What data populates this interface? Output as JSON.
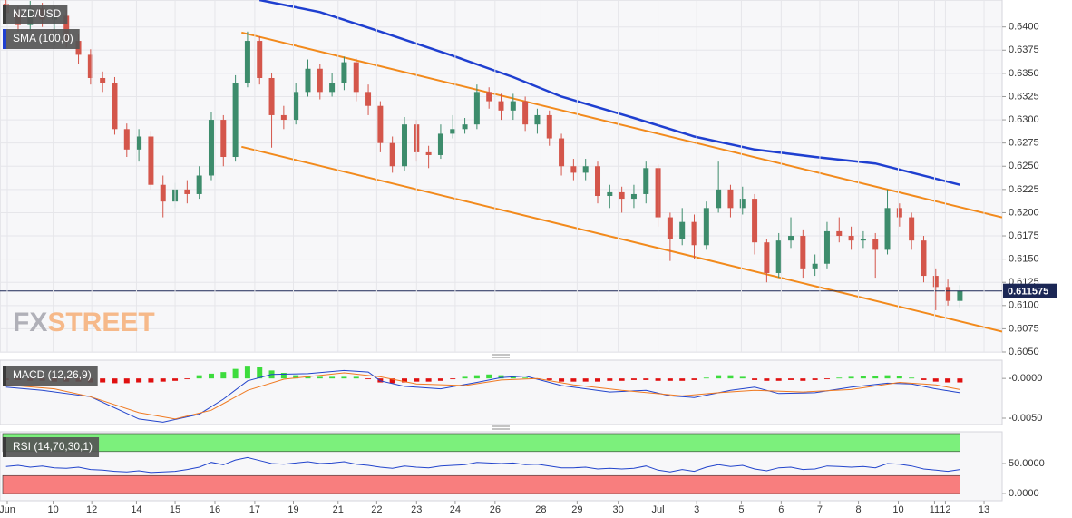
{
  "chart_data": [
    {
      "type": "candlestick",
      "title": "NZD/USD",
      "grid": true,
      "xlim": [
        -0.5,
        82.5
      ],
      "ylim": [
        0.605,
        0.6429
      ],
      "yticks": [
        {
          "value": 0.605,
          "label": "0.6050"
        },
        {
          "value": 0.6075,
          "label": "0.6075"
        },
        {
          "value": 0.61,
          "label": "0.6100"
        },
        {
          "value": 0.6125,
          "label": "0.6125"
        },
        {
          "value": 0.615,
          "label": "0.6150"
        },
        {
          "value": 0.6175,
          "label": "0.6175"
        },
        {
          "value": 0.62,
          "label": "0.6200"
        },
        {
          "value": 0.6225,
          "label": "0.6225"
        },
        {
          "value": 0.625,
          "label": "0.6250"
        },
        {
          "value": 0.6275,
          "label": "0.6275"
        },
        {
          "value": 0.63,
          "label": "0.6300"
        },
        {
          "value": 0.6325,
          "label": "0.6325"
        },
        {
          "value": 0.635,
          "label": "0.6350"
        },
        {
          "value": 0.6375,
          "label": "0.6375"
        },
        {
          "value": 0.64,
          "label": "0.6400"
        }
      ],
      "up_color": "#3d8c6c",
      "down_color": "#d4564b",
      "open": [
        0.6425,
        0.6415,
        0.6402,
        0.642,
        0.6408,
        0.6412,
        0.6385,
        0.637,
        0.6345,
        0.634,
        0.629,
        0.6268,
        0.6282,
        0.623,
        0.6212,
        0.6225,
        0.622,
        0.624,
        0.63,
        0.626,
        0.634,
        0.6385,
        0.6345,
        0.6305,
        0.63,
        0.633,
        0.6355,
        0.633,
        0.634,
        0.6362,
        0.633,
        0.6315,
        0.6275,
        0.625,
        0.6295,
        0.6265,
        0.6262,
        0.6285,
        0.629,
        0.6295,
        0.633,
        0.632,
        0.631,
        0.632,
        0.6295,
        0.6305,
        0.628,
        0.625,
        0.6243,
        0.625,
        0.6218,
        0.6222,
        0.6215,
        0.622,
        0.6248,
        0.6195,
        0.6172,
        0.619,
        0.6165,
        0.6205,
        0.6225,
        0.6205,
        0.6215,
        0.6168,
        0.6135,
        0.617,
        0.6175,
        0.614,
        0.6145,
        0.618,
        0.6175,
        0.617,
        0.6172,
        0.616,
        0.6205,
        0.6195,
        0.617,
        0.6132,
        0.612,
        0.6105
      ],
      "high": [
        0.6432,
        0.6422,
        0.6428,
        0.6426,
        0.6422,
        0.6418,
        0.6392,
        0.6376,
        0.6352,
        0.6346,
        0.6296,
        0.629,
        0.6288,
        0.624,
        0.6232,
        0.6235,
        0.625,
        0.6308,
        0.6305,
        0.6348,
        0.6395,
        0.639,
        0.635,
        0.6315,
        0.634,
        0.6365,
        0.636,
        0.635,
        0.6368,
        0.6366,
        0.6338,
        0.632,
        0.6282,
        0.6303,
        0.63,
        0.6272,
        0.6295,
        0.6305,
        0.6302,
        0.6338,
        0.6335,
        0.6328,
        0.6328,
        0.6325,
        0.6312,
        0.631,
        0.6285,
        0.6258,
        0.6258,
        0.6255,
        0.623,
        0.6228,
        0.623,
        0.6255,
        0.6252,
        0.62,
        0.6205,
        0.6198,
        0.6212,
        0.6255,
        0.623,
        0.6228,
        0.622,
        0.6172,
        0.6178,
        0.6195,
        0.6182,
        0.6155,
        0.619,
        0.6195,
        0.6185,
        0.618,
        0.6178,
        0.6225,
        0.621,
        0.62,
        0.6175,
        0.614,
        0.6128,
        0.6122
      ],
      "low": [
        0.6408,
        0.6395,
        0.6396,
        0.64,
        0.638,
        0.6378,
        0.636,
        0.6338,
        0.633,
        0.6284,
        0.626,
        0.6255,
        0.6225,
        0.6195,
        0.6205,
        0.621,
        0.6215,
        0.6235,
        0.625,
        0.6255,
        0.6335,
        0.6338,
        0.627,
        0.629,
        0.6295,
        0.6325,
        0.6322,
        0.6325,
        0.6332,
        0.632,
        0.6305,
        0.6265,
        0.6243,
        0.6245,
        0.6255,
        0.6248,
        0.6258,
        0.628,
        0.6285,
        0.629,
        0.6312,
        0.63,
        0.63,
        0.6288,
        0.6285,
        0.6272,
        0.624,
        0.6235,
        0.6235,
        0.621,
        0.6205,
        0.62,
        0.6205,
        0.621,
        0.6185,
        0.6148,
        0.6165,
        0.615,
        0.616,
        0.62,
        0.6195,
        0.6198,
        0.6155,
        0.6125,
        0.613,
        0.6162,
        0.613,
        0.6132,
        0.614,
        0.6168,
        0.616,
        0.6162,
        0.613,
        0.6155,
        0.6185,
        0.616,
        0.6125,
        0.6095,
        0.61,
        0.6098
      ],
      "close": [
        0.6415,
        0.6402,
        0.642,
        0.6408,
        0.6412,
        0.6385,
        0.637,
        0.6345,
        0.634,
        0.629,
        0.6268,
        0.6282,
        0.623,
        0.6212,
        0.6225,
        0.622,
        0.624,
        0.63,
        0.626,
        0.634,
        0.6385,
        0.6345,
        0.6305,
        0.63,
        0.633,
        0.6355,
        0.633,
        0.634,
        0.6362,
        0.633,
        0.6315,
        0.6275,
        0.625,
        0.6295,
        0.6265,
        0.6262,
        0.6285,
        0.629,
        0.6295,
        0.633,
        0.632,
        0.631,
        0.632,
        0.6295,
        0.6305,
        0.628,
        0.625,
        0.6243,
        0.625,
        0.6218,
        0.6222,
        0.6215,
        0.622,
        0.6248,
        0.6195,
        0.6172,
        0.619,
        0.6165,
        0.6205,
        0.6225,
        0.6205,
        0.6215,
        0.6168,
        0.6135,
        0.617,
        0.6175,
        0.614,
        0.6145,
        0.618,
        0.6175,
        0.617,
        0.6172,
        0.616,
        0.6205,
        0.6195,
        0.617,
        0.6132,
        0.612,
        0.6105,
        0.6116
      ],
      "series": [
        {
          "name": "SMA (100,0)",
          "color": "#1f3fd0",
          "x": [
            21,
            26,
            31,
            37,
            42,
            46,
            52,
            57,
            62,
            67,
            72,
            79
          ],
          "values": [
            0.6429,
            0.6416,
            0.6395,
            0.6369,
            0.6346,
            0.6325,
            0.6302,
            0.6282,
            0.6268,
            0.626,
            0.6253,
            0.623
          ]
        }
      ],
      "trendlines": [
        {
          "color": "#f28a1c",
          "x": [
            19.5,
            82.5
          ],
          "values": [
            0.6394,
            0.6195
          ]
        },
        {
          "color": "#f28a1c",
          "x": [
            19.5,
            82.5
          ],
          "values": [
            0.6271,
            0.6072
          ]
        }
      ],
      "last_price": 0.611575,
      "last_price_color": "#1b2755",
      "watermark": [
        "FX",
        "STREET"
      ]
    },
    {
      "type": "macd",
      "title": "MACD (12,26,9)",
      "xlim": [
        -0.5,
        82.5
      ],
      "ylim": [
        -0.0058,
        0.0023
      ],
      "yticks": [
        {
          "value": 0,
          "label": "-0.0000"
        },
        {
          "value": -0.005,
          "label": "-0.0050"
        }
      ],
      "up_color": "#3ddc3d",
      "down_color": "#e01010",
      "histogram": [
        -0.0002,
        -0.0002,
        -0.0003,
        -0.0003,
        -0.0004,
        -0.0004,
        -0.0004,
        -0.0005,
        -0.0005,
        -0.0006,
        -0.0006,
        -0.0005,
        -0.0005,
        -0.0004,
        -0.0003,
        -0.0001,
        0.0004,
        0.0006,
        0.0008,
        0.0012,
        0.0016,
        0.0014,
        0.001,
        0.0007,
        0.0004,
        0.0003,
        0.0002,
        0.0002,
        0.0002,
        0.0002,
        -0.0001,
        -0.0005,
        -0.0006,
        -0.0005,
        -0.0004,
        -0.0004,
        -0.0003,
        -0.0001,
        0.0002,
        0.0004,
        0.0005,
        0.0004,
        0.0003,
        0.0001,
        -0.0001,
        -0.0002,
        -0.0004,
        -0.0004,
        -0.0004,
        -0.0004,
        -0.0003,
        -0.0003,
        -0.0002,
        -0.0002,
        -0.0003,
        -0.0003,
        -0.0003,
        -0.0002,
        0.0001,
        0.0004,
        0.0004,
        0.0002,
        -0.0002,
        -0.0003,
        -0.0003,
        -0.0002,
        -0.0003,
        -0.0002,
        -0.0001,
        0.0001,
        0.0002,
        0.0003,
        0.0003,
        0.0004,
        0.0003,
        0.0001,
        -0.0002,
        -0.0004,
        -0.0005,
        -0.0005
      ],
      "series": [
        {
          "color": "#2244cc",
          "x": [
            0,
            3,
            7,
            11,
            13,
            16,
            18,
            20,
            22,
            25,
            28,
            30,
            31,
            33,
            36,
            39,
            41,
            43,
            46,
            50,
            53,
            55,
            57,
            60,
            62,
            64,
            67,
            70,
            73,
            75,
            77,
            79
          ],
          "values": [
            -0.0011,
            -0.0015,
            -0.0023,
            -0.0051,
            -0.0055,
            -0.0045,
            -0.0026,
            -0.0003,
            0.0005,
            0.0006,
            0.001,
            0.0008,
            -0.0003,
            -0.001,
            -0.0013,
            -0.0005,
            0.0001,
            0.0003,
            -0.0009,
            -0.0017,
            -0.0015,
            -0.0022,
            -0.0024,
            -0.0015,
            -0.0011,
            -0.0019,
            -0.0018,
            -0.0011,
            -0.0006,
            -0.0007,
            -0.0013,
            -0.0018
          ]
        },
        {
          "color": "#f07a22",
          "x": [
            0,
            4,
            7,
            11,
            14,
            17,
            20,
            23,
            28,
            31,
            34,
            38,
            41,
            44,
            47,
            51,
            56,
            59,
            62,
            66,
            70,
            74,
            77,
            79
          ],
          "values": [
            -0.0008,
            -0.0013,
            -0.0023,
            -0.0043,
            -0.0051,
            -0.004,
            -0.0015,
            -0.0001,
            0.0007,
            0.0002,
            -0.0007,
            -0.0009,
            -0.0002,
            0,
            -0.0008,
            -0.0015,
            -0.0022,
            -0.0018,
            -0.0015,
            -0.0017,
            -0.0014,
            -0.0005,
            -0.0008,
            -0.0014
          ]
        }
      ]
    },
    {
      "type": "line",
      "title": "RSI (14,70,30,1)",
      "xlim": [
        -0.5,
        82.5
      ],
      "ylim": [
        -12,
        103
      ],
      "yticks": [
        {
          "value": 50,
          "label": "50.0000"
        },
        {
          "value": 0,
          "label": "0.0000"
        }
      ],
      "bands": [
        {
          "from": 70,
          "to": 100,
          "color": "#7cf07c"
        },
        {
          "from": 0,
          "to": 30,
          "color": "#f87e7e"
        }
      ],
      "series": [
        {
          "color": "#2244cc",
          "values": [
            45,
            47,
            44,
            46,
            43,
            42,
            44,
            40,
            39,
            37,
            36,
            38,
            35,
            36,
            37,
            40,
            44,
            52,
            48,
            56,
            60,
            55,
            50,
            49,
            51,
            53,
            50,
            51,
            53,
            49,
            47,
            44,
            42,
            46,
            44,
            43,
            46,
            47,
            48,
            52,
            51,
            50,
            51,
            48,
            49,
            46,
            43,
            43,
            44,
            41,
            42,
            41,
            42,
            46,
            39,
            36,
            40,
            37,
            44,
            48,
            45,
            47,
            41,
            38,
            43,
            44,
            40,
            41,
            46,
            45,
            44,
            45,
            43,
            50,
            49,
            46,
            41,
            39,
            37,
            40
          ]
        }
      ],
      "xticks": [
        {
          "value": 0.1,
          "label": "Jun"
        },
        {
          "value": 3.9,
          "label": "10"
        },
        {
          "value": 7.1,
          "label": "12"
        },
        {
          "value": 10.8,
          "label": "14"
        },
        {
          "value": 14.0,
          "label": "15"
        },
        {
          "value": 17.3,
          "label": "16"
        },
        {
          "value": 20.6,
          "label": "17"
        },
        {
          "value": 23.8,
          "label": "19"
        },
        {
          "value": 27.5,
          "label": "21"
        },
        {
          "value": 30.7,
          "label": "22"
        },
        {
          "value": 34.0,
          "label": "23"
        },
        {
          "value": 37.2,
          "label": "24"
        },
        {
          "value": 40.5,
          "label": "26"
        },
        {
          "value": 44.3,
          "label": "28"
        },
        {
          "value": 47.3,
          "label": "29"
        },
        {
          "value": 50.7,
          "label": "30"
        },
        {
          "value": 54.0,
          "label": "Jul"
        },
        {
          "value": 57.2,
          "label": "3"
        },
        {
          "value": 60.9,
          "label": "5"
        },
        {
          "value": 64.2,
          "label": "6"
        },
        {
          "value": 67.4,
          "label": "7"
        },
        {
          "value": 70.6,
          "label": "8"
        },
        {
          "value": 73.9,
          "label": "10"
        },
        {
          "value": 76.9,
          "label": "11"
        },
        {
          "value": 77.8,
          "label": "12"
        },
        {
          "value": 81.0,
          "label": "13"
        }
      ]
    }
  ]
}
